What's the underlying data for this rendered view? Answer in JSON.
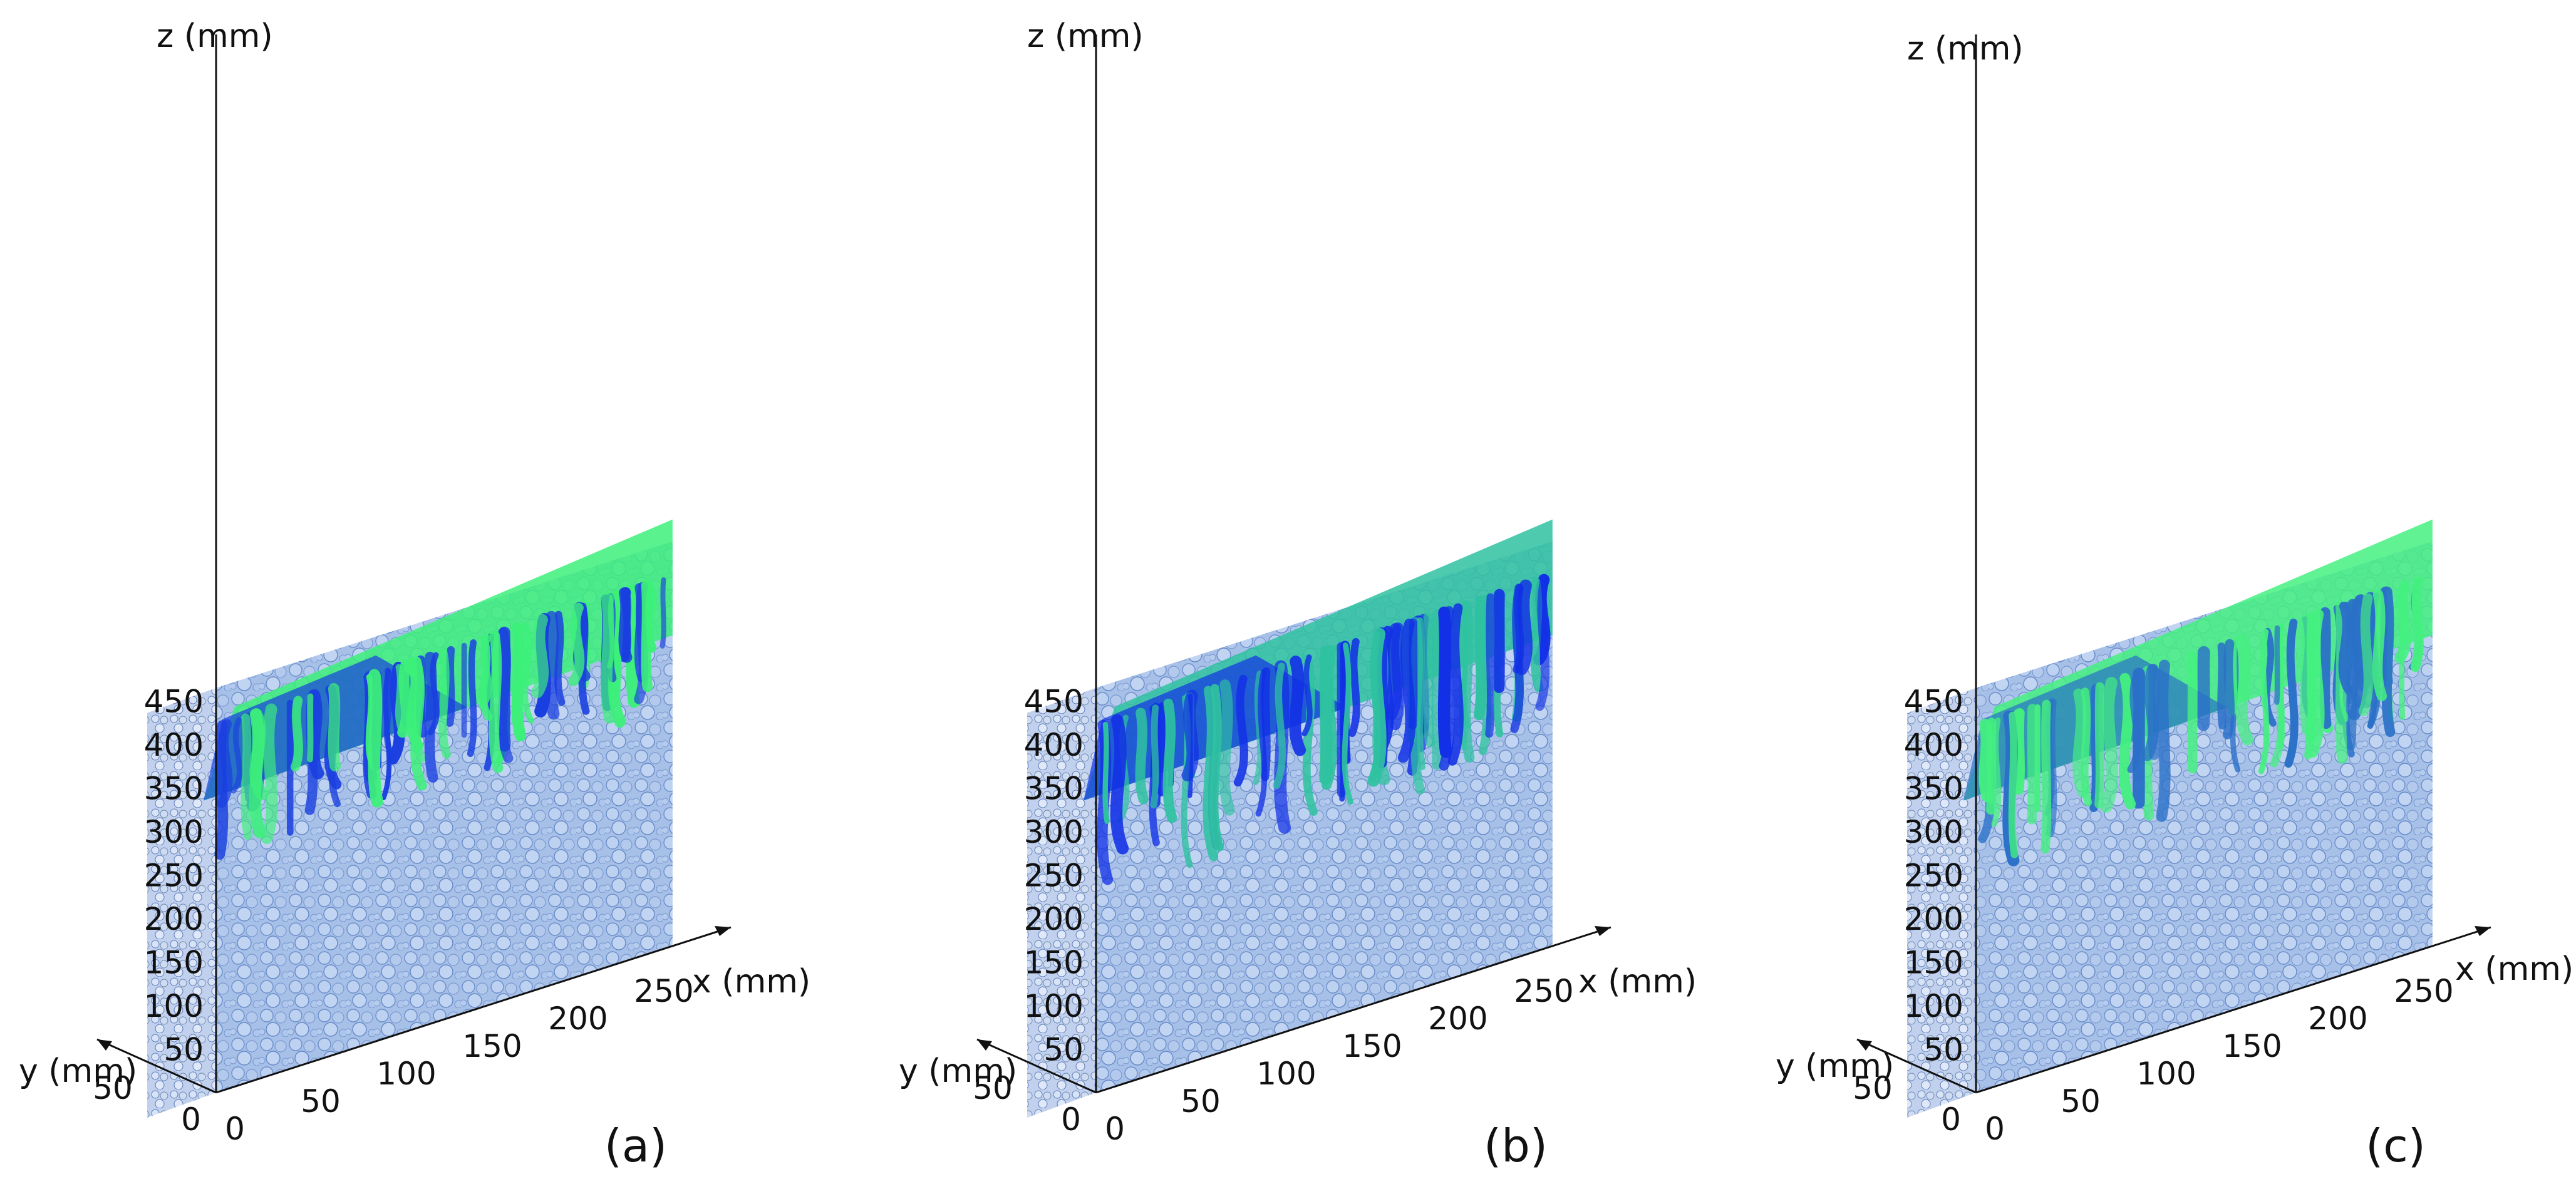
{
  "panels": [
    {
      "id": "a",
      "caption": "(a)",
      "z_axis": {
        "label": "z (mm)",
        "ticks": [
          "450",
          "400",
          "350",
          "300",
          "250",
          "200",
          "150",
          "100",
          "50"
        ]
      },
      "x_axis": {
        "label": "x (mm)",
        "ticks": [
          "0",
          "50",
          "100",
          "150",
          "200",
          "250"
        ]
      },
      "y_axis": {
        "label": "y (mm)",
        "ticks": [
          "50",
          "0"
        ]
      },
      "penetration_front_z_mm": 310,
      "top_color": "#3cf07a",
      "channel_color": "#1a3fe0"
    },
    {
      "id": "b",
      "caption": "(b)",
      "z_axis": {
        "label": "z (mm)",
        "ticks": [
          "450",
          "400",
          "350",
          "300",
          "250",
          "200",
          "150",
          "100",
          "50"
        ]
      },
      "x_axis": {
        "label": "x (mm)",
        "ticks": [
          "0",
          "50",
          "100",
          "150",
          "200",
          "250"
        ]
      },
      "y_axis": {
        "label": "y (mm)",
        "ticks": [
          "50",
          "0"
        ]
      },
      "penetration_front_z_mm": 270,
      "top_color": "#2fc2a0",
      "channel_color": "#1230e6"
    },
    {
      "id": "c",
      "caption": "(c)",
      "z_axis": {
        "label": "z (mm)",
        "ticks": [
          "450",
          "400",
          "350",
          "300",
          "250",
          "200",
          "150",
          "100",
          "50"
        ]
      },
      "x_axis": {
        "label": "x (mm)",
        "ticks": [
          "0",
          "50",
          "100",
          "150",
          "200",
          "250"
        ]
      },
      "y_axis": {
        "label": "y (mm)",
        "ticks": [
          "50",
          "0"
        ]
      },
      "penetration_front_z_mm": 290,
      "top_color": "#44f080",
      "channel_color": "#2a70c8"
    }
  ],
  "colors": {
    "packing_fill": "#9bb8e6",
    "packing_edge": "#5f84c6",
    "axis_line": "#111111"
  }
}
